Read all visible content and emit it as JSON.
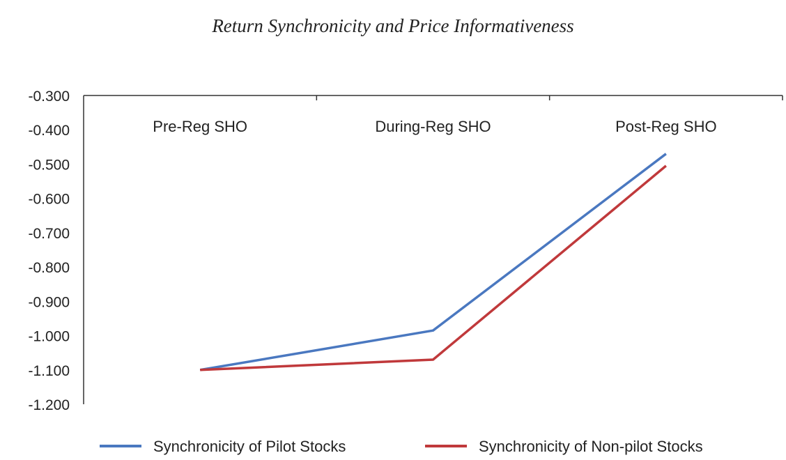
{
  "chart_data": {
    "type": "line",
    "title": "Return Synchronicity and Price Informativeness",
    "xlabel": "",
    "ylabel": "",
    "categories": [
      "Pre-Reg SHO",
      "During-Reg SHO",
      "Post-Reg SHO"
    ],
    "ylim": [
      -1.2,
      -0.3
    ],
    "yticks": [
      "-0.300",
      "-0.400",
      "-0.500",
      "-0.600",
      "-0.700",
      "-0.800",
      "-0.900",
      "-1.000",
      "-1.100",
      "-1.200"
    ],
    "grid": false,
    "legend_position": "bottom",
    "series": [
      {
        "name": "Synchronicity of Pilot Stocks",
        "color": "#4a78c0",
        "values": [
          -1.1,
          -0.985,
          -0.47
        ]
      },
      {
        "name": "Synchronicity of Non-pilot Stocks",
        "color": "#c0393b",
        "values": [
          -1.1,
          -1.07,
          -0.505
        ]
      }
    ]
  }
}
